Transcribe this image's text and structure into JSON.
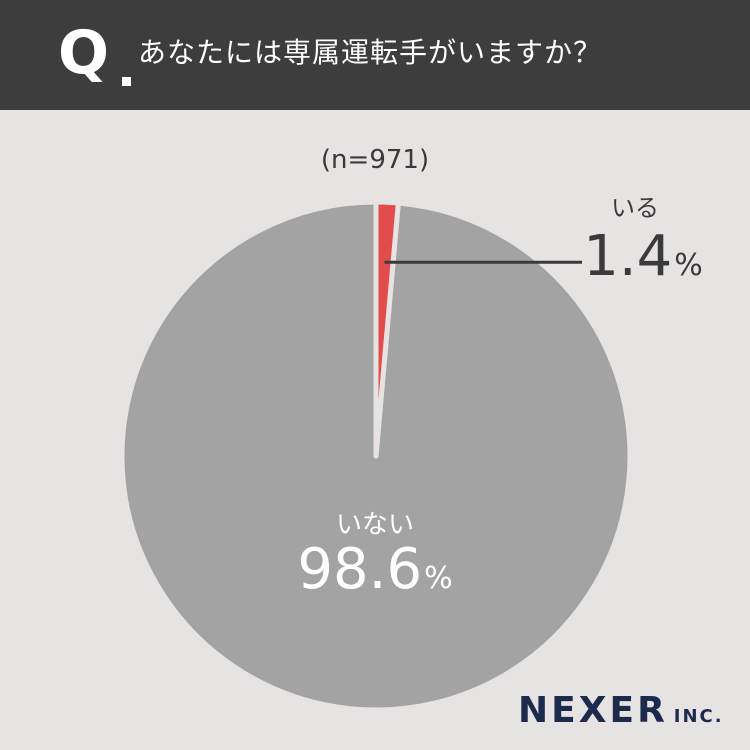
{
  "header": {
    "q_mark": "Q",
    "question": "あなたには専属運転手がいますか？"
  },
  "sample_size": "(n=971)",
  "colors": {
    "yes": "#e14d4c",
    "no": "#a3a3a3",
    "header_bg": "#3d3d3d",
    "bg": "#e6e3e2"
  },
  "chart_data": {
    "type": "pie",
    "title": "あなたには専属運転手がいますか？",
    "slices": [
      {
        "label": "いる",
        "value": 1.4,
        "display": "1.4",
        "unit": "%"
      },
      {
        "label": "いない",
        "value": 98.6,
        "display": "98.6",
        "unit": "%"
      }
    ]
  },
  "logo": {
    "main": "NEXER",
    "sub": "INC."
  }
}
